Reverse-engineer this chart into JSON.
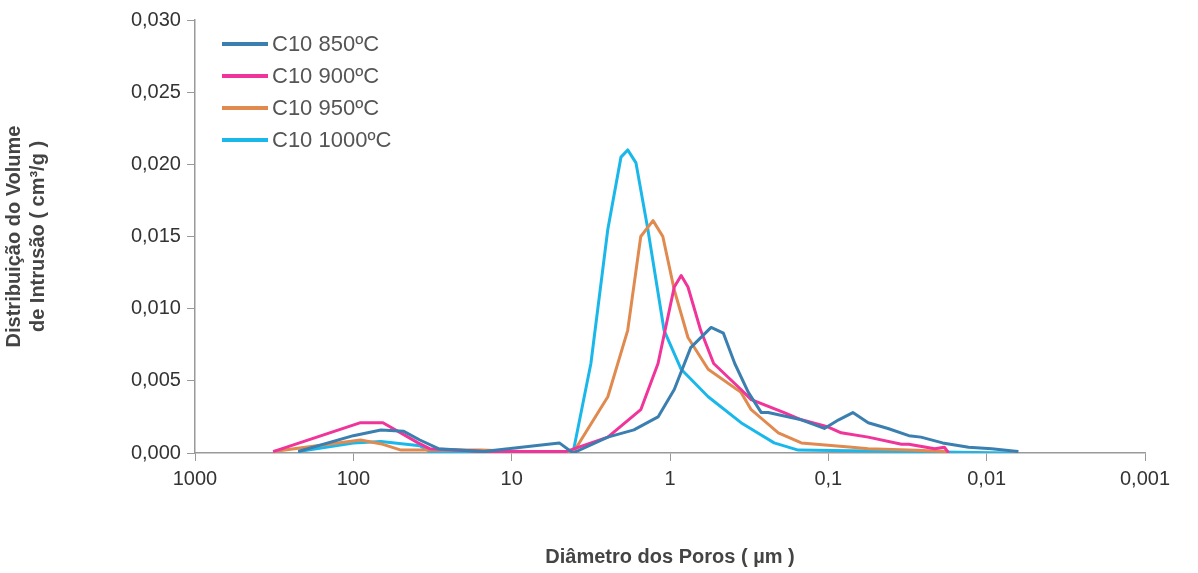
{
  "chart_data": {
    "type": "line",
    "xlabel": "Diâmetro dos Poros ( µm )",
    "ylabel": "Distribuição do Volume de Intrusão ( cm³/g )",
    "log": "x",
    "xlim": [
      1000,
      0.001
    ],
    "xticks": [
      1000,
      100,
      10,
      1,
      {
        "value": 0.1,
        "label": "0,1"
      },
      {
        "value": 0.01,
        "label": "0,01"
      },
      {
        "value": 0.001,
        "label": "0,001"
      }
    ],
    "ylim": [
      0,
      0.03
    ],
    "yticks": [
      {
        "value": 0,
        "label": "0,000"
      },
      {
        "value": 0.005,
        "label": "0,005"
      },
      {
        "value": 0.01,
        "label": "0,010"
      },
      {
        "value": 0.015,
        "label": "0,015"
      },
      {
        "value": 0.02,
        "label": "0,020"
      },
      {
        "value": 0.025,
        "label": "0,025"
      },
      {
        "value": 0.03,
        "label": "0,030"
      }
    ],
    "grid": false,
    "legend": "top left",
    "marker": "none",
    "line_style": "solid",
    "series": [
      {
        "name": "C10 850ºC",
        "color": "#3a7fb0",
        "x": [
          223,
          100,
          67,
          48,
          38,
          29,
          15,
          5.0,
          4.1,
          2.47,
          1.69,
          1.19,
          0.94,
          0.74,
          0.55,
          0.46,
          0.39,
          0.32,
          0.265,
          0.24,
          0.148,
          0.106,
          0.086,
          0.07,
          0.056,
          0.042,
          0.031,
          0.026,
          0.019,
          0.013,
          0.0093,
          0.0063
        ],
        "values": [
          0.0001,
          0.0012,
          0.0016,
          0.0015,
          0.0009,
          0.0003,
          0.0001,
          0.0007,
          0,
          0.0011,
          0.0016,
          0.0025,
          0.0044,
          0.0073,
          0.0087,
          0.0083,
          0.0062,
          0.0042,
          0.0028,
          0.0028,
          0.0023,
          0.0017,
          0.0023,
          0.0028,
          0.0021,
          0.0017,
          0.0012,
          0.0011,
          0.0007,
          0.0004,
          0.0003,
          0.0001
        ]
      },
      {
        "name": "C10 900ºC",
        "color": "#f0349a",
        "x": [
          321,
          90,
          65,
          39,
          33,
          15,
          4.55,
          2.47,
          1.53,
          1.19,
          0.94,
          0.85,
          0.77,
          0.64,
          0.53,
          0.356,
          0.307,
          0.19,
          0.148,
          0.1,
          0.083,
          0.056,
          0.0345,
          0.031,
          0.0213,
          0.0185,
          0.0174
        ],
        "values": [
          0.0001,
          0.0021,
          0.0021,
          0.0007,
          0.0003,
          0.0001,
          0.0001,
          0.0011,
          0.003,
          0.0062,
          0.0115,
          0.0123,
          0.0115,
          0.0085,
          0.0062,
          0.0044,
          0.0037,
          0.0028,
          0.0023,
          0.0018,
          0.0014,
          0.0011,
          0.0006,
          0.0006,
          0.0003,
          0.0004,
          0
        ]
      },
      {
        "name": "C10 950ºC",
        "color": "#e08a4f",
        "x": [
          321,
          90,
          65,
          50,
          15.7,
          4.1,
          2.47,
          1.85,
          1.53,
          1.28,
          1.11,
          0.94,
          0.77,
          0.574,
          0.356,
          0.307,
          0.207,
          0.148,
          0.071,
          0.056,
          0.031,
          0.0174
        ],
        "values": [
          0.0001,
          0.0009,
          0.0006,
          0.0002,
          0.0002,
          0,
          0.0039,
          0.0085,
          0.015,
          0.0161,
          0.015,
          0.0113,
          0.008,
          0.0058,
          0.0042,
          0.003,
          0.0014,
          0.0007,
          0.0004,
          0.0003,
          0.0002,
          0.0001
        ]
      },
      {
        "name": "C10 1000ºC",
        "color": "#1ab8ea",
        "x": [
          223,
          100,
          67,
          38,
          33,
          4.1,
          3.16,
          2.47,
          2.04,
          1.85,
          1.64,
          1.38,
          1.09,
          0.85,
          0.574,
          0.356,
          0.22,
          0.155,
          0.007
        ],
        "values": [
          0.0001,
          0.0007,
          0.0008,
          0.0005,
          0.0001,
          0,
          0.0062,
          0.0155,
          0.0205,
          0.021,
          0.0201,
          0.0155,
          0.0085,
          0.0058,
          0.0039,
          0.0021,
          0.0007,
          0.0002,
          0
        ]
      }
    ]
  }
}
